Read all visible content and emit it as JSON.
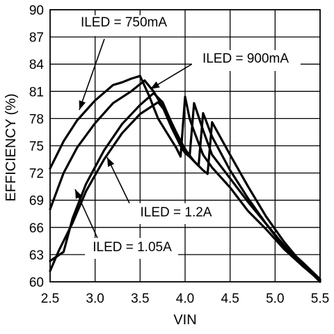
{
  "chart_data": {
    "type": "line",
    "title": "",
    "xlabel": "VIN",
    "ylabel": "EFFICIENCY (%)",
    "xlim": [
      2.5,
      5.5
    ],
    "ylim": [
      60,
      90
    ],
    "x_ticks": [
      "2.5",
      "3.0",
      "3.5",
      "4.0",
      "4.5",
      "5.0",
      "5.5"
    ],
    "y_ticks": [
      "60",
      "63",
      "66",
      "69",
      "72",
      "75",
      "78",
      "81",
      "84",
      "87",
      "90"
    ],
    "grid": true,
    "series": [
      {
        "name": "ILED = 750mA",
        "x": [
          2.5,
          2.65,
          2.8,
          3.0,
          3.2,
          3.3,
          3.4,
          3.5,
          3.6,
          3.7,
          3.8,
          3.9,
          3.95,
          4.0,
          4.05,
          4.1,
          4.2,
          4.3,
          4.5,
          4.7,
          4.9,
          5.1,
          5.3,
          5.5
        ],
        "y": [
          72.5,
          75.5,
          77.8,
          80.0,
          81.7,
          82.0,
          82.4,
          82.7,
          80.5,
          78.0,
          76.4,
          74.8,
          73.8,
          80.4,
          78.0,
          76.6,
          74.0,
          72.6,
          70.4,
          67.8,
          65.8,
          63.6,
          61.8,
          60.2
        ]
      },
      {
        "name": "ILED = 900mA",
        "x": [
          2.5,
          2.65,
          2.8,
          3.0,
          3.2,
          3.4,
          3.55,
          3.65,
          3.75,
          3.85,
          3.95,
          4.0,
          4.05,
          4.1,
          4.2,
          4.3,
          4.5,
          4.7,
          4.9,
          5.1,
          5.3,
          5.5
        ],
        "y": [
          68.0,
          72.0,
          74.8,
          77.5,
          79.7,
          81.0,
          82.2,
          81.0,
          79.3,
          77.0,
          75.0,
          74.2,
          73.8,
          79.7,
          76.7,
          74.0,
          71.4,
          68.8,
          66.4,
          64.0,
          62.2,
          60.3
        ]
      },
      {
        "name": "ILED = 1.05A",
        "x": [
          2.5,
          2.65,
          2.75,
          2.9,
          3.1,
          3.3,
          3.5,
          3.65,
          3.75,
          3.85,
          3.95,
          4.05,
          4.1,
          4.15,
          4.2,
          4.3,
          4.5,
          4.7,
          4.9,
          5.1,
          5.3,
          5.5
        ],
        "y": [
          62.3,
          63.3,
          67.0,
          70.8,
          74.5,
          77.4,
          79.5,
          80.8,
          79.8,
          77.5,
          75.5,
          73.8,
          73.3,
          72.8,
          78.6,
          76.0,
          72.3,
          69.2,
          66.4,
          63.8,
          61.8,
          60.1
        ]
      },
      {
        "name": "ILED = 1.2A",
        "x": [
          2.5,
          2.6,
          2.75,
          2.9,
          3.1,
          3.3,
          3.5,
          3.7,
          3.8,
          3.9,
          4.0,
          4.1,
          4.2,
          4.25,
          4.3,
          4.5,
          4.7,
          4.9,
          5.1,
          5.3,
          5.5
        ],
        "y": [
          61.2,
          63.5,
          66.5,
          70.0,
          73.5,
          76.4,
          78.5,
          79.8,
          78.6,
          76.5,
          74.6,
          73.3,
          72.3,
          71.9,
          77.6,
          74.0,
          70.5,
          67.2,
          64.4,
          62.0,
          60.0
        ]
      }
    ],
    "annotations": [
      {
        "text": "ILED = 750mA",
        "series": 0
      },
      {
        "text": "ILED = 900mA",
        "series": 1
      },
      {
        "text": "ILED = 1.2A",
        "series": 3
      },
      {
        "text": "ILED = 1.05A",
        "series": 2
      }
    ]
  }
}
